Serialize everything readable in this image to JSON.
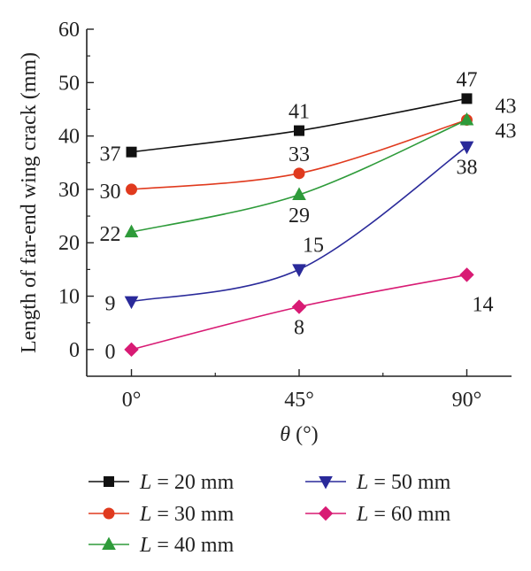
{
  "chart_data": {
    "type": "line",
    "xlabel": "θ (°)",
    "ylabel": "Length of far-end wing crack (mm)",
    "categories": [
      "0°",
      "45°",
      "90°"
    ],
    "x_values": [
      0,
      45,
      90
    ],
    "xlim": [
      -12,
      102
    ],
    "ylim": [
      -5,
      60
    ],
    "y_ticks": [
      0,
      10,
      20,
      30,
      40,
      50,
      60
    ],
    "grid": false,
    "legend_position": "bottom",
    "series": [
      {
        "name": "L = 20 mm",
        "marker": "square",
        "color": "#111111",
        "values": [
          37,
          41,
          47
        ],
        "labels": [
          "37",
          "41",
          "47"
        ]
      },
      {
        "name": "L = 30 mm",
        "marker": "circle",
        "color": "#e03a1e",
        "values": [
          30,
          33,
          43
        ],
        "labels": [
          "30",
          "33",
          "43"
        ]
      },
      {
        "name": "L = 40 mm",
        "marker": "triangle-up",
        "color": "#2e9b3a",
        "values": [
          22,
          29,
          43
        ],
        "labels": [
          "22",
          "29",
          "43"
        ]
      },
      {
        "name": "L = 50 mm",
        "marker": "triangle-down",
        "color": "#2a2a9a",
        "values": [
          9,
          15,
          38
        ],
        "labels": [
          "9",
          "15",
          "38"
        ]
      },
      {
        "name": "L = 60 mm",
        "marker": "diamond",
        "color": "#d81b74",
        "values": [
          0,
          8,
          14
        ],
        "labels": [
          "0",
          "8",
          "14"
        ]
      }
    ]
  }
}
